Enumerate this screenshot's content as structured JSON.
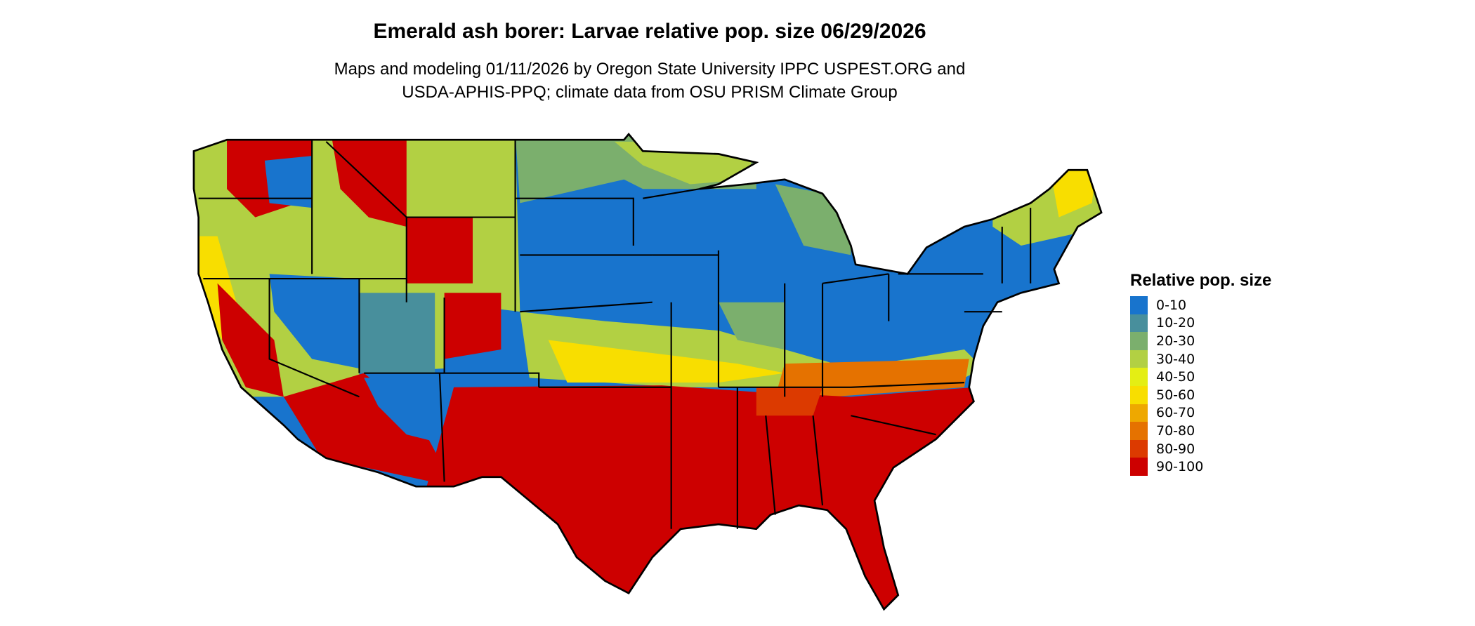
{
  "title": "Emerald ash borer: Larvae relative pop. size 06/29/2026",
  "subtitle_line1": "Maps and modeling 01/11/2026 by Oregon State University IPPC USPEST.ORG and",
  "subtitle_line2": "USDA-APHIS-PPQ; climate data from OSU PRISM Climate Group",
  "legend": {
    "title": "Relative pop. size",
    "items": [
      {
        "label": "0-10",
        "color": "#1874CD"
      },
      {
        "label": "10-20",
        "color": "#488F9C"
      },
      {
        "label": "20-30",
        "color": "#7BAF6D"
      },
      {
        "label": "30-40",
        "color": "#B2D043"
      },
      {
        "label": "40-50",
        "color": "#E4EE14"
      },
      {
        "label": "50-60",
        "color": "#F8DE00"
      },
      {
        "label": "60-70",
        "color": "#EEA800"
      },
      {
        "label": "70-80",
        "color": "#E57200"
      },
      {
        "label": "80-90",
        "color": "#DC3A00"
      },
      {
        "label": "90-100",
        "color": "#CD0000"
      }
    ]
  }
}
